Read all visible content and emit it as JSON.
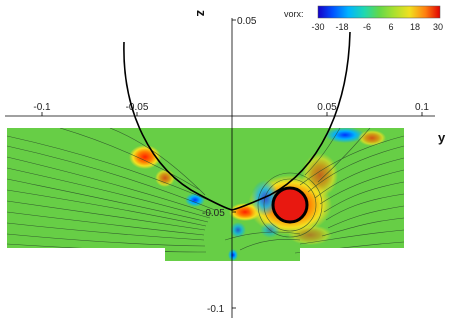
{
  "chart_data": {
    "type": "heatmap",
    "xlabel": "y",
    "ylabel": "z",
    "xlim": [
      -0.12,
      0.12
    ],
    "ylim": [
      -0.105,
      0.06
    ],
    "x_ticks": [
      {
        "value": -0.1,
        "label": "-0.1"
      },
      {
        "value": -0.05,
        "label": "-0.05"
      },
      {
        "value": 0.05,
        "label": "0.05"
      },
      {
        "value": 0.1,
        "label": "0.1"
      }
    ],
    "y_ticks": [
      {
        "value": 0.05,
        "label": "0.05"
      },
      {
        "value": -0.05,
        "label": "-0.05"
      },
      {
        "value": -0.1,
        "label": "-0.1"
      }
    ],
    "colorbar": {
      "title": "vorx:",
      "range": [
        -30,
        30
      ],
      "ticks": [
        "-30",
        "-18",
        "-6",
        "6",
        "18",
        "30"
      ]
    },
    "colors": {
      "background_field": "#6fd24a",
      "negative": "#1f4fff",
      "positive": "#e82a10",
      "curve": "#000000"
    }
  }
}
